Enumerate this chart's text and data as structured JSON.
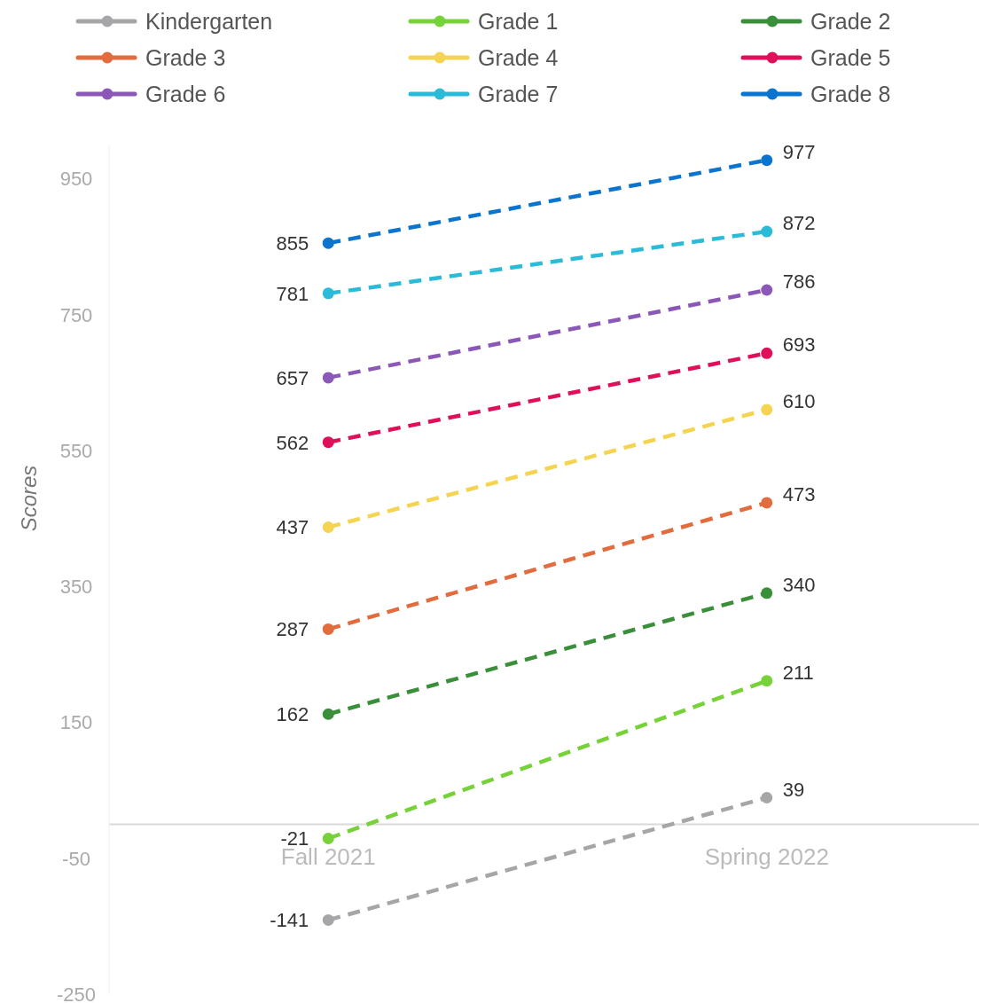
{
  "chart_data": {
    "type": "line",
    "ylabel": "Scores",
    "categories": [
      "Fall 2021",
      "Spring 2022"
    ],
    "series": [
      {
        "name": "Kindergarten",
        "color": "#a6a6a8",
        "values": [
          -141,
          39
        ]
      },
      {
        "name": "Grade 1",
        "color": "#77d23a",
        "values": [
          -21,
          211
        ]
      },
      {
        "name": "Grade 2",
        "color": "#3a8f3a",
        "values": [
          162,
          340
        ]
      },
      {
        "name": "Grade 3",
        "color": "#e36c3f",
        "values": [
          287,
          473
        ]
      },
      {
        "name": "Grade 4",
        "color": "#f5d451",
        "values": [
          437,
          610
        ]
      },
      {
        "name": "Grade 5",
        "color": "#df0f5a",
        "values": [
          562,
          693
        ]
      },
      {
        "name": "Grade 6",
        "color": "#8b58b8",
        "values": [
          657,
          786
        ]
      },
      {
        "name": "Grade 7",
        "color": "#2bbbd8",
        "values": [
          781,
          872
        ]
      },
      {
        "name": "Grade 8",
        "color": "#0a74cf",
        "values": [
          855,
          977
        ]
      }
    ],
    "ylim": [
      -250,
      1000
    ],
    "yticks": [
      -250,
      -50,
      150,
      350,
      550,
      750,
      950
    ],
    "grid": false,
    "legend": "top",
    "marker": "circle",
    "line_style": "dashed",
    "data_labels": true
  }
}
